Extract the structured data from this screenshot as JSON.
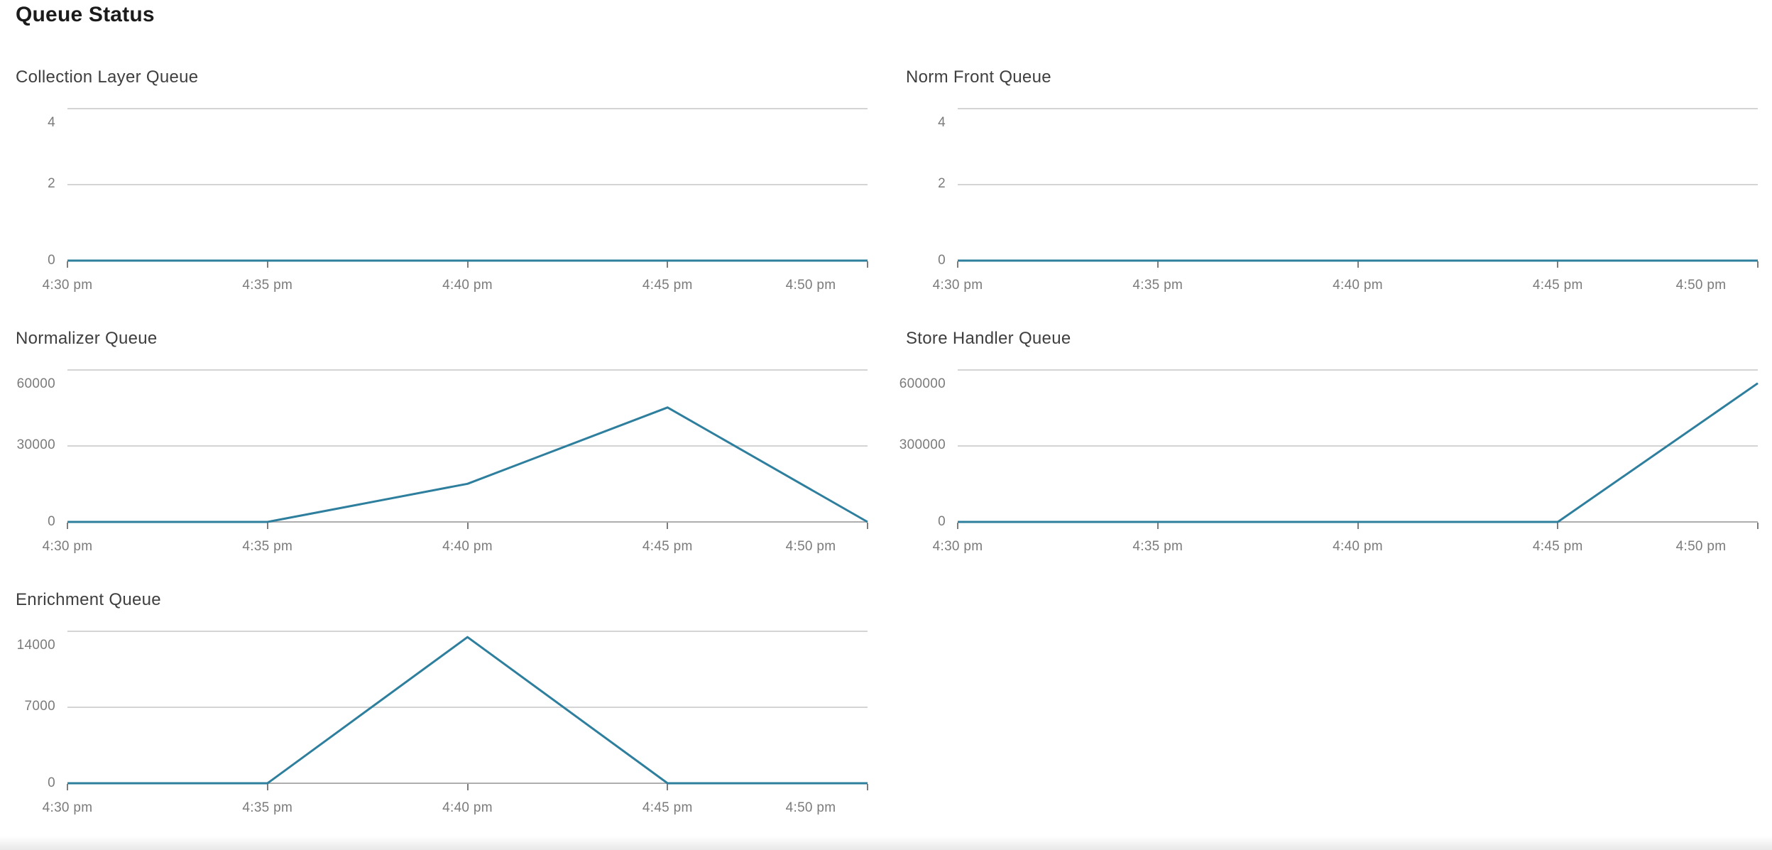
{
  "page": {
    "title": "Queue Status"
  },
  "colors": {
    "line": "#2e7f9e",
    "grid": "#d4d4d4",
    "axis": "#aeaeae",
    "tick": "#7d7d7d",
    "tick_label": "#7b7b7b",
    "chart_title": "#3f3f3f",
    "page_title": "#1b1b1b"
  },
  "chart_data": [
    {
      "type": "line",
      "title": "Collection Layer Queue",
      "x_labels": [
        "4:30 pm",
        "4:35 pm",
        "4:40 pm",
        "4:45 pm",
        "4:50 pm"
      ],
      "x_minutes": [
        0,
        5,
        10,
        15,
        20
      ],
      "values": [
        0,
        0,
        0,
        0,
        0
      ],
      "yticks": [
        0,
        2,
        4
      ],
      "ylim": [
        0,
        4
      ],
      "legend": "none",
      "grid": "horizontal"
    },
    {
      "type": "line",
      "title": "Norm Front Queue",
      "x_labels": [
        "4:30 pm",
        "4:35 pm",
        "4:40 pm",
        "4:45 pm",
        "4:50 pm"
      ],
      "x_minutes": [
        0,
        5,
        10,
        15,
        20
      ],
      "values": [
        0,
        0,
        0,
        0,
        0
      ],
      "yticks": [
        0,
        2,
        4
      ],
      "ylim": [
        0,
        4
      ],
      "legend": "none",
      "grid": "horizontal"
    },
    {
      "type": "line",
      "title": "Normalizer Queue",
      "x_labels": [
        "4:30 pm",
        "4:35 pm",
        "4:40 pm",
        "4:45 pm",
        "4:50 pm"
      ],
      "x_minutes": [
        0,
        5,
        10,
        15,
        20
      ],
      "values": [
        0,
        0,
        15000,
        45000,
        0
      ],
      "yticks": [
        0,
        30000,
        60000
      ],
      "ylim": [
        0,
        60000
      ],
      "legend": "none",
      "grid": "horizontal"
    },
    {
      "type": "line",
      "title": "Store Handler Queue",
      "x_labels": [
        "4:30 pm",
        "4:35 pm",
        "4:40 pm",
        "4:45 pm",
        "4:50 pm"
      ],
      "x_minutes": [
        0,
        5,
        10,
        15,
        20
      ],
      "values": [
        0,
        0,
        0,
        0,
        545000
      ],
      "yticks": [
        0,
        300000,
        600000
      ],
      "ylim": [
        0,
        600000
      ],
      "legend": "none",
      "grid": "horizontal"
    },
    {
      "type": "line",
      "title": "Enrichment Queue",
      "x_labels": [
        "4:30 pm",
        "4:35 pm",
        "4:40 pm",
        "4:45 pm",
        "4:50 pm"
      ],
      "x_minutes": [
        0,
        5,
        10,
        15,
        20
      ],
      "values": [
        0,
        0,
        13400,
        0,
        0
      ],
      "yticks": [
        0,
        7000,
        14000
      ],
      "ylim": [
        0,
        14000
      ],
      "legend": "none",
      "grid": "horizontal"
    }
  ]
}
